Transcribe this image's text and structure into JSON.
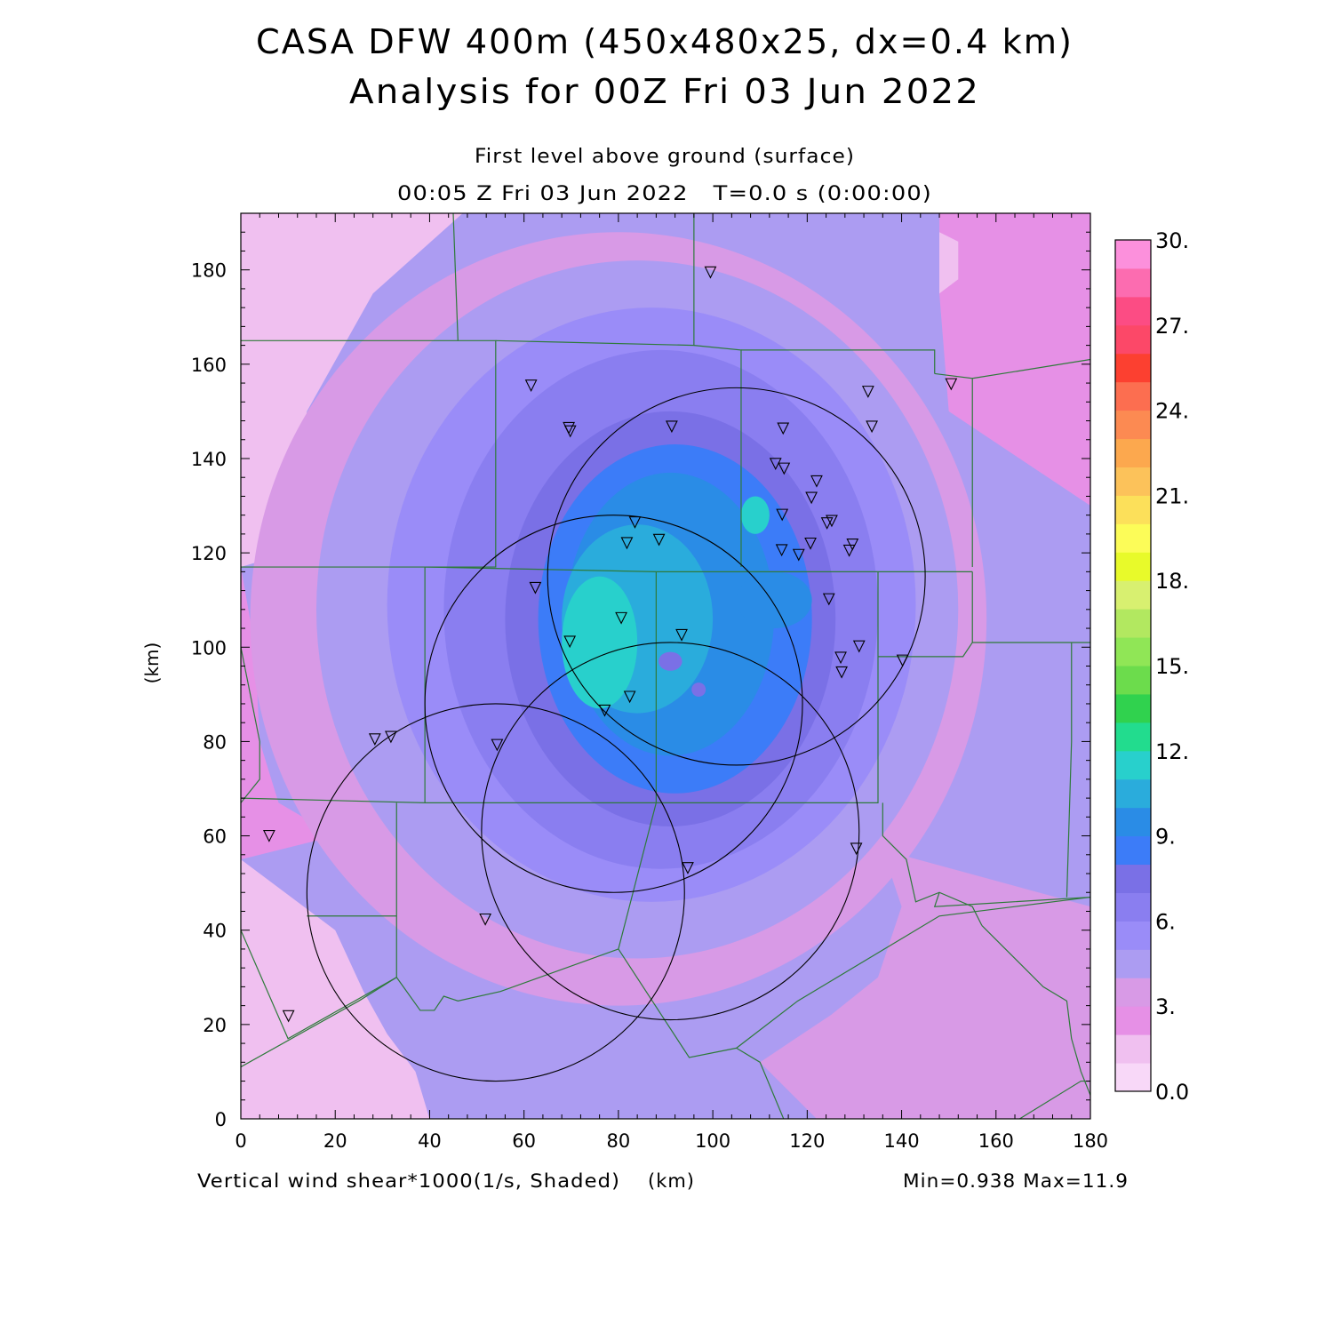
{
  "chart_data": {
    "type": "heatmap",
    "title": "CASA DFW 400m (450x480x25, dx=0.4 km)",
    "subtitle": "Analysis for 00Z Fri 03 Jun 2022",
    "level_label": "First level above ground (surface)",
    "time_label": "00:05 Z Fri 03 Jun 2022   T=0.0 s (0:00:00)",
    "xlabel": "(km)",
    "ylabel": "(km)",
    "field_label": "Vertical wind shear*1000(1/s, Shaded)",
    "stats_label": "Min=0.938 Max=11.9",
    "xlim": [
      0,
      180
    ],
    "ylim": [
      0,
      192
    ],
    "x_ticks": [
      "0",
      "20",
      "40",
      "60",
      "80",
      "100",
      "120",
      "140",
      "160",
      "180"
    ],
    "y_ticks": [
      "0",
      "20",
      "40",
      "60",
      "80",
      "100",
      "120",
      "140",
      "160",
      "180"
    ],
    "grid": false,
    "colorbar": {
      "placement": "right",
      "labels": [
        "0.0",
        "3.",
        "6.",
        "9.",
        "12.",
        "15.",
        "18.",
        "21.",
        "24.",
        "27.",
        "30."
      ],
      "colors": [
        "#f8d8f8",
        "#f0c0f0",
        "#e690e6",
        "#d89ae6",
        "#ac9cf2",
        "#9a8cf8",
        "#8a7ef0",
        "#7a70e6",
        "#3c7cf8",
        "#2a8ce6",
        "#2aacdc",
        "#28d0cc",
        "#22dc8e",
        "#30d24e",
        "#6cdc4c",
        "#90e656",
        "#b2e860",
        "#d8f070",
        "#e8fa2a",
        "#fcfc58",
        "#fce05a",
        "#fcc25a",
        "#fca84e",
        "#fc8a52",
        "#fc6e50",
        "#fc4030",
        "#fc4868",
        "#fc4c84",
        "#fc6cb0",
        "#fc90dc"
      ]
    },
    "radar_rings": [
      {
        "center_x": 105,
        "center_y": 115,
        "radius": 40
      },
      {
        "center_x": 79,
        "center_y": 88,
        "radius": 40
      },
      {
        "center_x": 91,
        "center_y": 61,
        "radius": 40
      },
      {
        "center_x": 54,
        "center_y": 48,
        "radius": 40
      }
    ],
    "stations": [
      [
        99.5,
        179.5
      ],
      [
        61.5,
        155.5
      ],
      [
        69.5,
        146.5
      ],
      [
        69.8,
        145.8
      ],
      [
        91.3,
        146.8
      ],
      [
        114.9,
        146.4
      ],
      [
        132.9,
        154.2
      ],
      [
        133.7,
        146.8
      ],
      [
        150.5,
        155.8
      ],
      [
        113.3,
        138.9
      ],
      [
        115.1,
        137.9
      ],
      [
        122,
        135.2
      ],
      [
        120.9,
        131.7
      ],
      [
        114.7,
        128.1
      ],
      [
        125.2,
        126.8
      ],
      [
        124.2,
        126.3
      ],
      [
        83.5,
        126.5
      ],
      [
        88.6,
        122.8
      ],
      [
        81.8,
        122.1
      ],
      [
        114.6,
        120.6
      ],
      [
        118.2,
        119.6
      ],
      [
        120.7,
        122
      ],
      [
        129.6,
        121.8
      ],
      [
        128.9,
        120.5
      ],
      [
        62.4,
        112.6
      ],
      [
        124.6,
        110.2
      ],
      [
        80.6,
        106.2
      ],
      [
        93.4,
        102.6
      ],
      [
        69.7,
        101.2
      ],
      [
        131,
        100.2
      ],
      [
        127.1,
        97.8
      ],
      [
        127.3,
        94.7
      ],
      [
        140.2,
        97.2
      ],
      [
        82.4,
        89.5
      ],
      [
        77.1,
        86.6
      ],
      [
        54.3,
        79.3
      ],
      [
        28.4,
        80.5
      ],
      [
        31.8,
        81
      ],
      [
        6,
        60
      ],
      [
        130.4,
        57.3
      ],
      [
        94.7,
        53.2
      ],
      [
        51.8,
        42.3
      ],
      [
        10.1,
        21.8
      ]
    ],
    "background_regions": [
      {
        "points": [
          [
            0,
            192
          ],
          [
            47,
            192
          ],
          [
            28,
            175
          ],
          [
            14,
            150
          ],
          [
            10,
            120
          ],
          [
            0,
            117
          ]
        ],
        "level": 1
      },
      {
        "points": [
          [
            0,
            117
          ],
          [
            3,
            100
          ],
          [
            4,
            80
          ],
          [
            8,
            67
          ],
          [
            20,
            60
          ],
          [
            0,
            55
          ]
        ],
        "level": 2
      },
      {
        "points": [
          [
            0,
            55
          ],
          [
            20,
            40
          ],
          [
            26,
            27
          ],
          [
            31,
            18
          ],
          [
            37,
            10
          ],
          [
            40,
            0
          ],
          [
            0,
            0
          ]
        ],
        "level": 1
      },
      {
        "points": [
          [
            148,
            192
          ],
          [
            180,
            192
          ],
          [
            180,
            130
          ],
          [
            165,
            140
          ],
          [
            150,
            150
          ],
          [
            148,
            175
          ]
        ],
        "level": 2
      },
      {
        "points": [
          [
            148,
            188
          ],
          [
            152,
            186
          ],
          [
            152,
            178
          ],
          [
            148,
            175
          ]
        ],
        "level": 1
      },
      {
        "points": [
          [
            136,
            57
          ],
          [
            180,
            45
          ],
          [
            180,
            0
          ],
          [
            160,
            0
          ],
          [
            122,
            0
          ],
          [
            110,
            12
          ],
          [
            125,
            22
          ],
          [
            135,
            30
          ],
          [
            140,
            45
          ]
        ],
        "level": 3
      }
    ],
    "pockets": [
      {
        "center_x": 91,
        "center_y": 97,
        "rx": 2.5,
        "ry": 2,
        "level": 7
      },
      {
        "center_x": 97,
        "center_y": 91,
        "rx": 1.5,
        "ry": 1.5,
        "level": 7
      },
      {
        "center_x": 113,
        "center_y": 110,
        "rx": 8,
        "ry": 6,
        "level": 9
      },
      {
        "center_x": 109,
        "center_y": 128,
        "rx": 3,
        "ry": 4,
        "level": 11
      }
    ],
    "contours": [
      {
        "cx": 80,
        "cy": 106,
        "rx": 78,
        "ry": 82,
        "level": 3
      },
      {
        "cx": 84,
        "cy": 108,
        "rx": 68,
        "ry": 74,
        "level": 4
      },
      {
        "cx": 87,
        "cy": 109,
        "rx": 56,
        "ry": 63,
        "level": 5
      },
      {
        "cx": 89,
        "cy": 108,
        "rx": 46,
        "ry": 55,
        "level": 6
      },
      {
        "cx": 91,
        "cy": 106,
        "rx": 35,
        "ry": 44,
        "level": 7
      },
      {
        "cx": 92,
        "cy": 106,
        "rx": 29,
        "ry": 37,
        "level": 8
      },
      {
        "cx": 91,
        "cy": 107,
        "rx": 22,
        "ry": 30,
        "level": 9
      },
      {
        "cx": 84,
        "cy": 106,
        "rx": 16,
        "ry": 20,
        "level": 10
      },
      {
        "cx": 76,
        "cy": 101,
        "rx": 8,
        "ry": 14,
        "level": 11
      }
    ],
    "county_lines": [
      [
        [
          0,
          165
        ],
        [
          45,
          165
        ],
        [
          54,
          165
        ],
        [
          54,
          117
        ],
        [
          39,
          117
        ],
        [
          0,
          117
        ]
      ],
      [
        [
          45,
          192
        ],
        [
          46,
          165
        ]
      ],
      [
        [
          54,
          165
        ],
        [
          96,
          164
        ],
        [
          96,
          192
        ]
      ],
      [
        [
          96,
          164
        ],
        [
          106,
          163
        ],
        [
          106,
          117
        ]
      ],
      [
        [
          106,
          163
        ],
        [
          147,
          163
        ],
        [
          147,
          158
        ]
      ],
      [
        [
          147,
          158
        ],
        [
          155,
          157
        ],
        [
          155,
          117
        ]
      ],
      [
        [
          155,
          157
        ],
        [
          180,
          161
        ]
      ],
      [
        [
          39,
          117
        ],
        [
          88,
          116
        ],
        [
          135,
          116
        ],
        [
          155,
          116
        ]
      ],
      [
        [
          39,
          117
        ],
        [
          39,
          67
        ],
        [
          0,
          68
        ]
      ],
      [
        [
          39,
          67
        ],
        [
          88,
          67
        ],
        [
          135,
          67
        ],
        [
          135,
          116
        ]
      ],
      [
        [
          88,
          116
        ],
        [
          88,
          67
        ]
      ],
      [
        [
          155,
          116
        ],
        [
          155,
          101
        ],
        [
          180,
          101
        ]
      ],
      [
        [
          155,
          101
        ],
        [
          153,
          98
        ],
        [
          135,
          98
        ]
      ],
      [
        [
          33,
          67
        ],
        [
          33,
          43
        ],
        [
          33,
          30
        ],
        [
          25,
          25
        ],
        [
          0,
          11
        ]
      ],
      [
        [
          0,
          40
        ],
        [
          10,
          17
        ],
        [
          33,
          30
        ]
      ],
      [
        [
          14,
          43
        ],
        [
          33,
          43
        ]
      ],
      [
        [
          33,
          30
        ],
        [
          38,
          23
        ],
        [
          41,
          23
        ],
        [
          43,
          26
        ],
        [
          46,
          25
        ],
        [
          55,
          27
        ],
        [
          80,
          36
        ],
        [
          88,
          67
        ]
      ],
      [
        [
          80,
          36
        ],
        [
          95,
          13
        ],
        [
          105,
          15
        ],
        [
          118,
          25
        ],
        [
          148,
          43
        ],
        [
          180,
          47
        ]
      ],
      [
        [
          105,
          15
        ],
        [
          110,
          12
        ],
        [
          115,
          0
        ]
      ],
      [
        [
          136,
          67
        ],
        [
          136,
          60
        ],
        [
          141,
          55
        ],
        [
          143,
          46
        ],
        [
          148,
          48
        ],
        [
          155,
          45
        ],
        [
          157,
          41
        ]
      ],
      [
        [
          157,
          41
        ],
        [
          165,
          33
        ],
        [
          170,
          28
        ],
        [
          175,
          25
        ],
        [
          176,
          17
        ],
        [
          178,
          10
        ],
        [
          180,
          5
        ]
      ],
      [
        [
          165,
          0
        ],
        [
          178,
          8
        ],
        [
          180,
          8
        ]
      ],
      [
        [
          148,
          48
        ],
        [
          147,
          45
        ],
        [
          180,
          47
        ]
      ],
      [
        [
          175,
          47
        ],
        [
          176,
          80
        ],
        [
          176,
          101
        ]
      ],
      [
        [
          0,
          67
        ],
        [
          4,
          72
        ],
        [
          4,
          80
        ],
        [
          0,
          100
        ]
      ]
    ]
  }
}
